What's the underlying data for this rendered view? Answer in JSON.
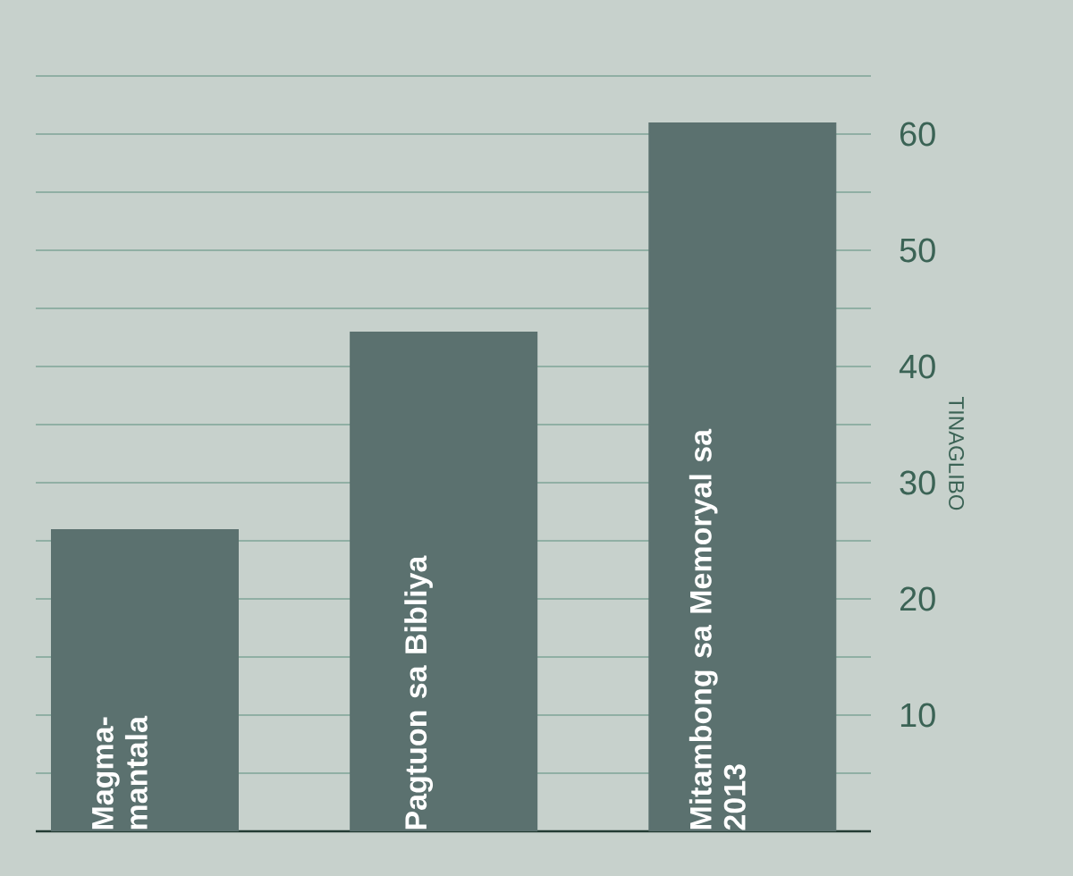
{
  "chart_data": {
    "type": "bar",
    "categories": [
      "Magma-mantala",
      "Pagtuon sa Bibliya",
      "Mitambong sa Memoryal sa 2013"
    ],
    "values": [
      26,
      43,
      61
    ],
    "color": "#5b716f",
    "ylabel": "TINAGLIBO",
    "ylim": [
      0,
      65
    ],
    "yticks": [
      {
        "value": 5,
        "label": null
      },
      10,
      {
        "value": 15,
        "label": null
      },
      20,
      {
        "value": 25,
        "label": null
      },
      30,
      {
        "value": 35,
        "label": null
      },
      40,
      {
        "value": 45,
        "label": null
      },
      50,
      {
        "value": 55,
        "label": null
      },
      60,
      {
        "value": 65,
        "label": null
      }
    ],
    "grid": "y"
  }
}
